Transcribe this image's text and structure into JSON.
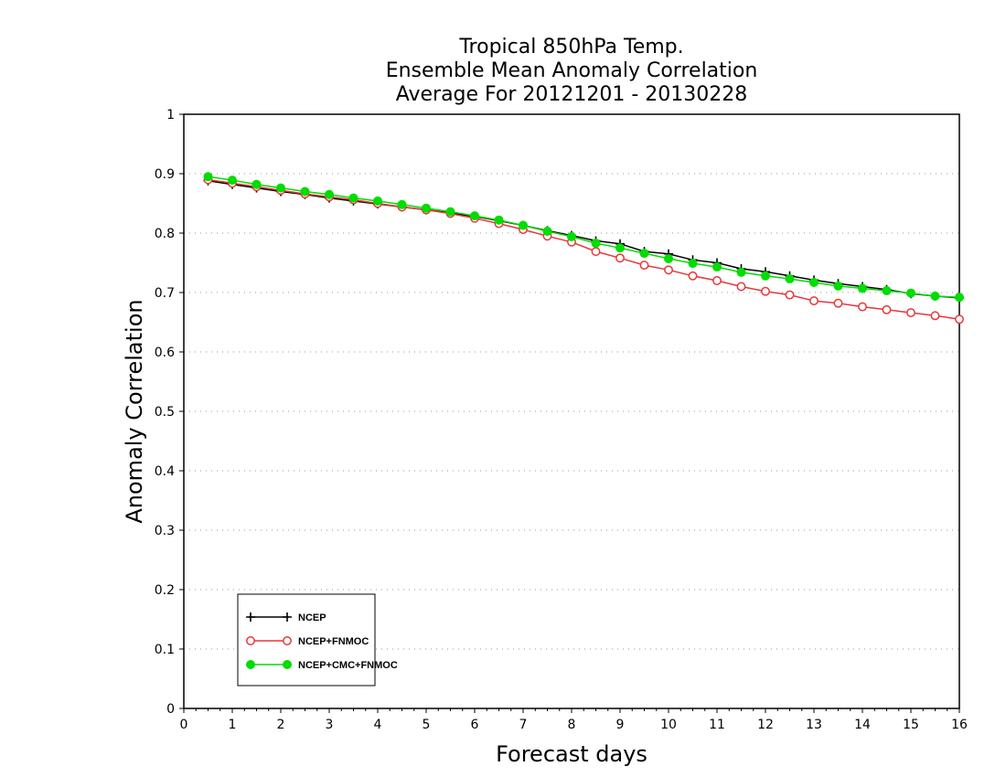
{
  "chart_data": {
    "type": "line",
    "title": [
      "Tropical 850hPa Temp.",
      "Ensemble Mean Anomaly Correlation",
      "Average For 20121201 - 20130228"
    ],
    "xlabel": "Forecast days",
    "ylabel": "Anomaly Correlation",
    "xlim": [
      0,
      16
    ],
    "ylim": [
      0,
      1
    ],
    "xticks": [
      "0",
      "1",
      "2",
      "3",
      "4",
      "5",
      "6",
      "7",
      "8",
      "9",
      "10",
      "11",
      "12",
      "13",
      "14",
      "15",
      "16"
    ],
    "yticks": [
      "0",
      "0.1",
      "0.2",
      "0.3",
      "0.4",
      "0.5",
      "0.6",
      "0.7",
      "0.8",
      "0.9",
      "1"
    ],
    "grid": "horizontal dotted",
    "legend_position": "bottom-left",
    "x": [
      0.5,
      1,
      1.5,
      2,
      2.5,
      3,
      3.5,
      4,
      4.5,
      5,
      5.5,
      6,
      6.5,
      7,
      7.5,
      8,
      8.5,
      9,
      9.5,
      10,
      10.5,
      11,
      11.5,
      12,
      12.5,
      13,
      13.5,
      14,
      14.5,
      15,
      15.5,
      16
    ],
    "series": [
      {
        "name": "NCEP",
        "color": "#000000",
        "marker": "plus",
        "values": [
          0.888,
          0.882,
          0.876,
          0.87,
          0.865,
          0.859,
          0.854,
          0.849,
          0.844,
          0.839,
          0.834,
          0.828,
          0.821,
          0.813,
          0.804,
          0.796,
          0.787,
          0.782,
          0.769,
          0.765,
          0.755,
          0.75,
          0.74,
          0.735,
          0.728,
          0.721,
          0.715,
          0.71,
          0.705,
          0.698,
          0.694,
          0.691
        ]
      },
      {
        "name": "NCEP+FNMOC",
        "color": "#e8363c",
        "marker": "open-circle",
        "values": [
          0.89,
          0.884,
          0.878,
          0.872,
          0.866,
          0.861,
          0.856,
          0.85,
          0.844,
          0.839,
          0.833,
          0.825,
          0.816,
          0.806,
          0.795,
          0.785,
          0.769,
          0.758,
          0.746,
          0.738,
          0.728,
          0.72,
          0.71,
          0.702,
          0.696,
          0.686,
          0.682,
          0.676,
          0.671,
          0.666,
          0.661,
          0.655
        ]
      },
      {
        "name": "NCEP+CMC+FNMOC",
        "color": "#00dd00",
        "marker": "filled-circle",
        "values": [
          0.895,
          0.889,
          0.882,
          0.876,
          0.87,
          0.865,
          0.859,
          0.854,
          0.848,
          0.842,
          0.836,
          0.829,
          0.822,
          0.813,
          0.803,
          0.794,
          0.783,
          0.775,
          0.766,
          0.757,
          0.749,
          0.743,
          0.734,
          0.728,
          0.723,
          0.717,
          0.711,
          0.707,
          0.703,
          0.699,
          0.694,
          0.692
        ]
      }
    ]
  }
}
